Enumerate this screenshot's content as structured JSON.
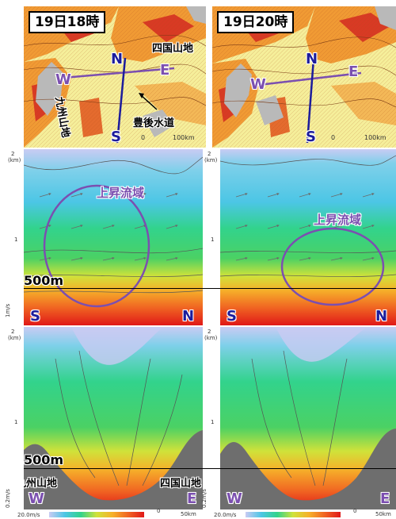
{
  "maps": [
    {
      "time_label": "19日18時",
      "labels": {
        "N": "N",
        "S": "S",
        "W": "W",
        "E": "E",
        "shikoku_mountains": "四国山地",
        "kyushu_mountains": "九州山地",
        "bungo_channel": "豊後水道"
      },
      "scale_zero": "0",
      "scale_label": "100km"
    },
    {
      "time_label": "19日20時",
      "labels": {
        "N": "N",
        "S": "S",
        "W": "W",
        "E": "E"
      },
      "scale_zero": "0",
      "scale_label": "100km"
    }
  ],
  "sn_sections": [
    {
      "y_top_tick": "2",
      "y_unit": "(km)",
      "y_mid_tick": "1",
      "updraft_label": "上昇流域",
      "level_label": "500m",
      "left_label": "S",
      "right_label": "N",
      "vector_scale": "1m/s"
    },
    {
      "y_top_tick": "2",
      "y_unit": "(km)",
      "y_mid_tick": "1",
      "updraft_label": "上昇流域",
      "left_label": "S",
      "right_label": "N"
    }
  ],
  "we_sections": [
    {
      "y_top_tick": "2",
      "y_unit": "(km)",
      "y_mid_tick": "1",
      "level_label": "500m",
      "left_mountain": "九州山地",
      "right_mountain": "四国山地",
      "left_label": "W",
      "right_label": "E",
      "vector_scale": "0.2m/s",
      "speed_legend": "20.0m/s",
      "scale_zero": "0",
      "scale_label": "50km"
    },
    {
      "y_top_tick": "2",
      "y_unit": "(km)",
      "y_mid_tick": "1",
      "left_label": "W",
      "right_label": "E",
      "vector_scale": "0.2m/s",
      "speed_legend": "20.0m/s",
      "scale_zero": "0",
      "scale_label": "50km"
    }
  ],
  "colors": {
    "sea": "#f5ee9a",
    "land_orange": "#f09a34",
    "land_red": "#d83a24",
    "island_gray": "#b9b9b9",
    "navy": "#1c1c9c",
    "purple": "#7b4fb0",
    "terrain_gray": "#6e6e6e"
  }
}
